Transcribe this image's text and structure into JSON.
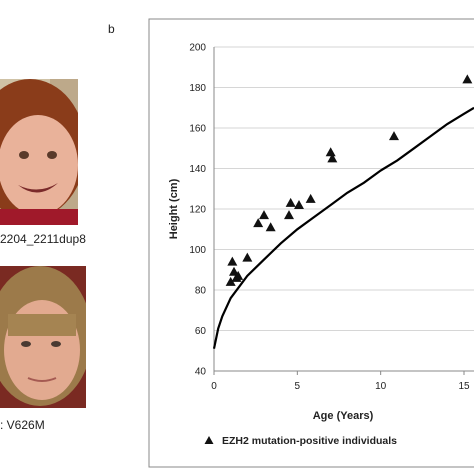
{
  "panel_b_label": "b",
  "photos": [
    {
      "caption": "2204_2211dup8",
      "icon": "child-portrait-photo"
    },
    {
      "caption": ": V626M",
      "icon": "teen-portrait-photo"
    }
  ],
  "chart_data": {
    "type": "scatter",
    "title": "",
    "xlabel": "Age (Years)",
    "ylabel": "Height (cm)",
    "xlim": [
      0,
      15.6
    ],
    "ylim": [
      40,
      200
    ],
    "xticks": [
      0,
      5,
      10,
      15
    ],
    "xtick_labels": [
      "0",
      "5",
      "10",
      "15"
    ],
    "yticks": [
      40,
      60,
      80,
      100,
      120,
      140,
      160,
      180,
      200
    ],
    "ytick_labels": [
      "40",
      "60",
      "80",
      "100",
      "120",
      "140",
      "160",
      "180",
      "200"
    ],
    "grid": "horizontal",
    "legend_position": "bottom",
    "series": [
      {
        "name": "EZH2 mutation-positive individuals",
        "kind": "scatter",
        "marker": "triangle",
        "color": "#111111",
        "points": [
          [
            1.0,
            84
          ],
          [
            1.1,
            94
          ],
          [
            1.2,
            89
          ],
          [
            1.35,
            86
          ],
          [
            1.45,
            87
          ],
          [
            2.0,
            96
          ],
          [
            2.65,
            113
          ],
          [
            3.0,
            117
          ],
          [
            3.4,
            111
          ],
          [
            4.5,
            117
          ],
          [
            4.6,
            123
          ],
          [
            5.1,
            122
          ],
          [
            5.8,
            125
          ],
          [
            7.0,
            148
          ],
          [
            7.1,
            145
          ],
          [
            10.8,
            156
          ],
          [
            15.2,
            184
          ]
        ]
      },
      {
        "name": "",
        "kind": "line",
        "color": "#000000",
        "points": [
          [
            0,
            51
          ],
          [
            0.25,
            61
          ],
          [
            0.5,
            67
          ],
          [
            1,
            76
          ],
          [
            2,
            87
          ],
          [
            3,
            95
          ],
          [
            4,
            103
          ],
          [
            5,
            110
          ],
          [
            6,
            116
          ],
          [
            7,
            122
          ],
          [
            8,
            128
          ],
          [
            9,
            133
          ],
          [
            10,
            139
          ],
          [
            11,
            144
          ],
          [
            12,
            150
          ],
          [
            13,
            156
          ],
          [
            14,
            162
          ],
          [
            15,
            167
          ],
          [
            15.6,
            170
          ]
        ]
      }
    ]
  }
}
